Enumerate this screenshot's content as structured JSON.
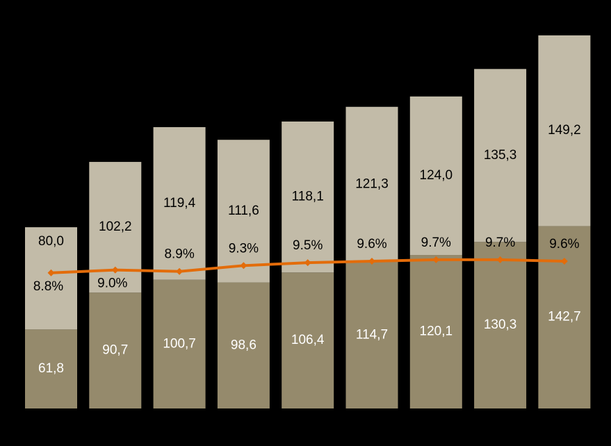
{
  "chart_data": {
    "type": "bar",
    "stacked": true,
    "background": "#000000",
    "categories": [
      null,
      null,
      null,
      null,
      null,
      null,
      null,
      null,
      null
    ],
    "ylim": [
      0,
      300
    ],
    "y2lim": [
      -0.5,
      25.8
    ],
    "series": [
      {
        "color": "#958a6c",
        "values": [
          61.8,
          90.7,
          100.7,
          98.6,
          106.4,
          114.7,
          120.1,
          130.3,
          142.7
        ],
        "value_labels": [
          "61,8",
          "90,7",
          "100,7",
          "98,6",
          "106,4",
          "114,7",
          "120,1",
          "130,3",
          "142,7"
        ],
        "label_color": "#ffffff"
      },
      {
        "color": "#c2bba8",
        "values": [
          80.0,
          102.2,
          119.4,
          111.6,
          118.1,
          121.3,
          124.0,
          135.3,
          149.2
        ],
        "value_labels": [
          "80,0",
          "102,2",
          "119,4",
          "111,6",
          "118,1",
          "121,3",
          "124,0",
          "135,3",
          "149,2"
        ],
        "label_color": "#000000"
      },
      {
        "type": "line",
        "axis": "y2",
        "color": "#e36c0a",
        "values": [
          8.8,
          9.0,
          8.9,
          9.3,
          9.5,
          9.6,
          9.7,
          9.7,
          9.6
        ],
        "value_labels": [
          "8.8%",
          "9.0%",
          "8.9%",
          "9.3%",
          "9.5%",
          "9.6%",
          "9.7%",
          "9.7%",
          "9.6%"
        ],
        "label_color": "#000000"
      }
    ]
  }
}
